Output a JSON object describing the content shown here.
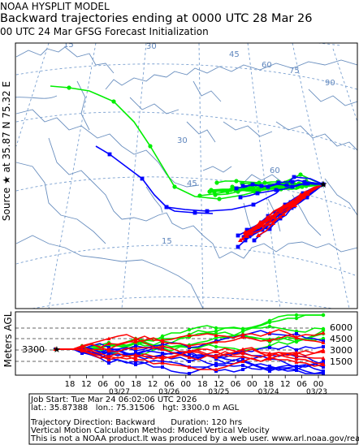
{
  "header": {
    "line1": "NOAA HYSPLIT MODEL",
    "line2": "Backward trajectories ending at 0000 UTC 28 Mar 26",
    "line3": "00 UTC 24 Mar    GFSG  Forecast Initialization"
  },
  "source_label": "Source ★ at    35.87 N   75.32 E",
  "vertical_axis_label": "Meters AGL",
  "map": {
    "grid_labels": [
      "15",
      "30",
      "45",
      "60",
      "75",
      "90",
      "30",
      "45",
      "60",
      "15"
    ],
    "source_marker": "source-star"
  },
  "vertical_panel": {
    "start_height_label": "3300",
    "right_tick_labels": [
      "6000",
      "4500",
      "3000",
      "1500"
    ],
    "hour_labels": [
      "18",
      "12",
      "06",
      "00",
      "18",
      "12",
      "06",
      "00",
      "18",
      "12",
      "06",
      "00",
      "18",
      "12",
      "06",
      "00"
    ],
    "date_labels": [
      "03/27",
      "03/26",
      "03/25",
      "03/24",
      "03/23"
    ]
  },
  "info": {
    "job_start": "Job Start: Tue Mar 24 06:02:06 UTC 2026",
    "location": "lat.: 35.87388   lon.: 75.31506   hgt: 3300.0 m AGL",
    "direction": "Trajectory Direction: Backward      Duration: 120 hrs",
    "vertical_method": "Vertical Motion Calculation Method: Model Vertical Velocity",
    "disclaimer": "This is not a NOAA product.It was produced by a web user. www.arl.noaa.gov/ready"
  },
  "colors": {
    "green": "#00ee00",
    "blue": "#0000ff",
    "red": "#ff0000",
    "map_lines": "#6a8fbf",
    "grid_lines": "#7aa0d0"
  }
}
